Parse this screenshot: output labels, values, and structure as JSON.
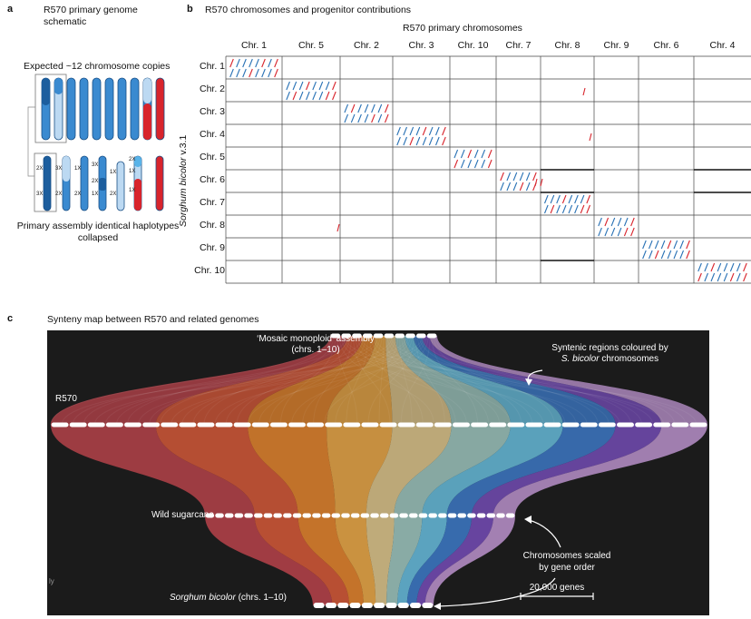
{
  "panel_a": {
    "label": "a",
    "title": "R570 primary genome schematic",
    "expected_label": "Expected ~12 chromosome copies",
    "caption": "Primary assembly identical haplotypes collapsed",
    "dosage": {
      "col1": [
        "2X",
        "3X"
      ],
      "col2": [
        "3X",
        "2X"
      ],
      "col3": [
        "1X",
        "2X"
      ],
      "col4": [
        "3X",
        "2X",
        "1X"
      ],
      "col5": [
        "1X",
        "2X"
      ],
      "col6": [
        "2X",
        "1X",
        "1X"
      ]
    },
    "colors": {
      "dark": "#1c5e9e",
      "mid": "#3a8ad0",
      "light": "#bcd9f2",
      "red": "#d8242c"
    }
  },
  "panel_b": {
    "label": "b",
    "title": "R570 chromosomes and progenitor contributions",
    "top_axis_title": "R570 primary chromosomes",
    "columns": [
      "Chr. 1",
      "Chr. 5",
      "Chr. 2",
      "Chr. 3",
      "Chr. 10",
      "Chr. 7",
      "Chr. 8",
      "Chr. 9",
      "Chr. 6",
      "Chr. 4"
    ],
    "rows": [
      "Chr. 1",
      "Chr. 2",
      "Chr. 3",
      "Chr. 4",
      "Chr. 5",
      "Chr. 6",
      "Chr. 7",
      "Chr. 8",
      "Chr. 9",
      "Chr. 10"
    ],
    "y_axis_title_italic": "Sorghum bicolor",
    "y_axis_title_rest": " v.3.1",
    "colors": {
      "blue": "#2a72b5",
      "red": "#d8242c"
    }
  },
  "panel_c": {
    "label": "c",
    "title": "Synteny map between R570 and related genomes",
    "mosaic_line1": "‘Mosaic monoploid’ assembly",
    "mosaic_line2": "(chrs. 1–10)",
    "syntenic_line1": "Syntenic regions coloured by",
    "syntenic_italic": "S. bicolor",
    "syntenic_rest": " chromosomes",
    "r570_label": "R570",
    "wild_label": "Wild sugarcane",
    "scaled_line1": "Chromosomes scaled",
    "scaled_line2": "by gene order",
    "sorghum_italic": "Sorghum bicolor",
    "sorghum_rest": " (chrs. 1–10)",
    "scale_bar_label": "20,000 genes",
    "side_mark": "ly",
    "ribbon_colors": [
      "#c2454d",
      "#e05c3a",
      "#ef8a2e",
      "#f6b04a",
      "#e9cf92",
      "#a5d0c8",
      "#6cc6e8",
      "#3f7fd2",
      "#7a4fc0",
      "#c59ad8"
    ],
    "background": "#1b1b1b"
  }
}
